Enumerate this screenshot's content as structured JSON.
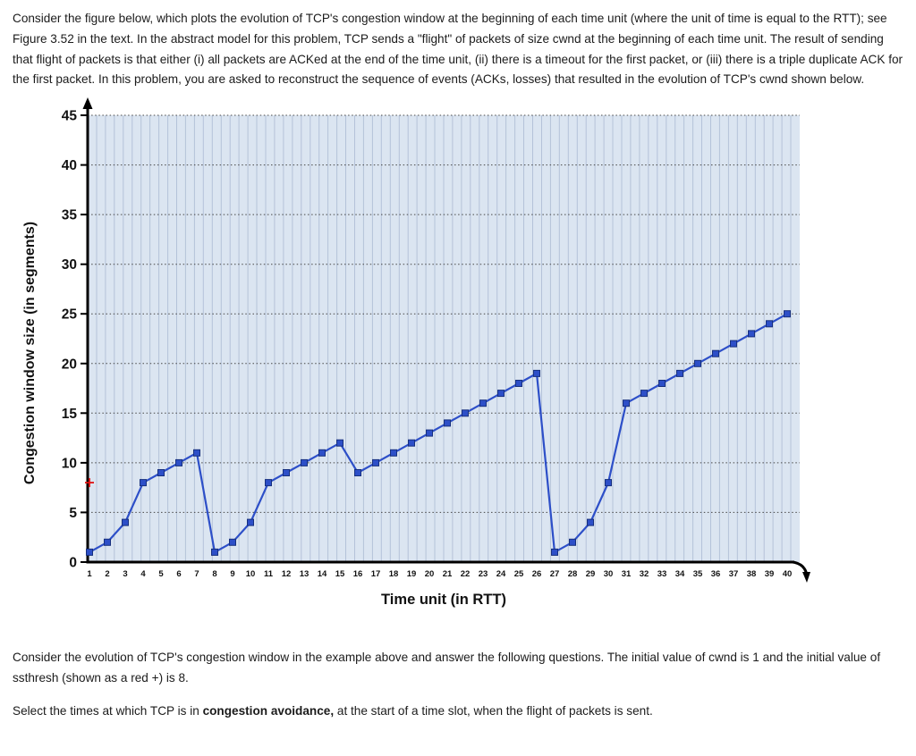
{
  "intro": "Consider the figure below, which plots the evolution of TCP's congestion window at the beginning of each time unit (where the unit of time is equal to the RTT); see Figure 3.52 in the text. In the abstract model for this problem, TCP sends a \"flight\" of packets of size cwnd at the beginning of each time unit. The result of sending that flight of packets is that either (i) all packets are ACKed at the end of the time unit, (ii) there is a timeout for the first packet, or (iii) there is a triple duplicate ACK for the first packet. In this problem, you are asked to reconstruct the sequence of events (ACKs, losses) that resulted in the evolution of TCP's cwnd shown below.",
  "chart_data": {
    "type": "line",
    "title": "",
    "xlabel": "Time unit (in RTT)",
    "ylabel": "Congestion window size (in segments)",
    "x": [
      1,
      2,
      3,
      4,
      5,
      6,
      7,
      8,
      9,
      10,
      11,
      12,
      13,
      14,
      15,
      16,
      17,
      18,
      19,
      20,
      21,
      22,
      23,
      24,
      25,
      26,
      27,
      28,
      29,
      30,
      31,
      32,
      33,
      34,
      35,
      36,
      37,
      38,
      39,
      40
    ],
    "series": [
      {
        "name": "cwnd",
        "values": [
          1,
          2,
          4,
          8,
          9,
          10,
          11,
          1,
          2,
          4,
          8,
          9,
          10,
          11,
          12,
          9,
          10,
          11,
          12,
          13,
          14,
          15,
          16,
          17,
          18,
          19,
          1,
          2,
          4,
          8,
          16,
          17,
          18,
          19,
          20,
          21,
          22,
          23,
          24,
          25
        ]
      }
    ],
    "ssthresh_marker": {
      "x": 1,
      "y": 8,
      "symbol": "+",
      "color": "#e01212"
    },
    "ylim": [
      0,
      45
    ],
    "yticks": [
      0,
      5,
      10,
      15,
      20,
      25,
      30,
      35,
      40,
      45
    ],
    "line_color": "#2d4fc8",
    "marker_edge": "#17307e",
    "marker": "square",
    "plot_bg": "#dbe5f1",
    "grid_color": "#b4c2d9",
    "grid": "vertical minor lines every half unit; horizontal dotted lines at multiples of 5",
    "legend": "none"
  },
  "followup": "Consider the evolution of TCP's congestion window in the example above and answer the following questions. The initial value of cwnd is 1 and the initial value of ssthresh (shown as a red +) is 8.",
  "question": {
    "prefix": "Select the times at which TCP is in ",
    "bold": "congestion avoidance,",
    "suffix": " at the start of a time slot, when the flight of packets is sent."
  }
}
